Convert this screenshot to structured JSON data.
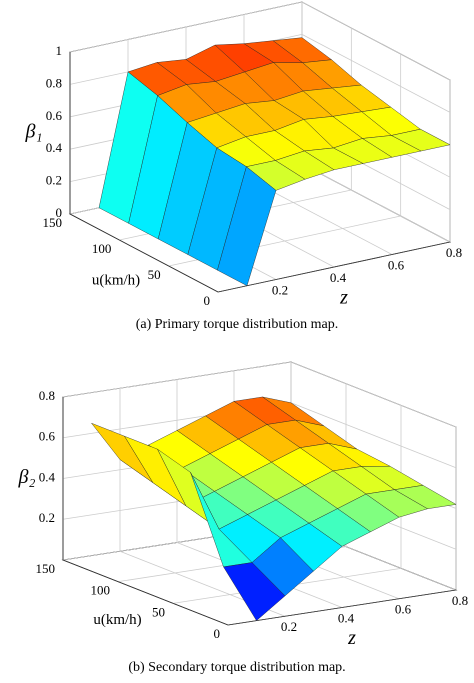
{
  "chart_data": [
    {
      "type": "surface",
      "colormap": "jet",
      "grid": true,
      "xlabel": "z",
      "ylabel": "u(km/h)",
      "zlabel": "β₁",
      "caption": "(a) Primary torque distribution map.",
      "x": [
        0.1,
        0.2,
        0.3,
        0.4,
        0.5,
        0.6,
        0.7,
        0.8
      ],
      "y": [
        0,
        30,
        60,
        90,
        120,
        150
      ],
      "values": [
        [
          0,
          0.55,
          0.58,
          0.6,
          0.6,
          0.6,
          0.6,
          0.6
        ],
        [
          0,
          0.6,
          0.6,
          0.62,
          0.6,
          0.62,
          0.6,
          0.6
        ],
        [
          0,
          0.62,
          0.65,
          0.65,
          0.68,
          0.66,
          0.65,
          0.64
        ],
        [
          0,
          0.68,
          0.7,
          0.72,
          0.7,
          0.72,
          0.7,
          0.68
        ],
        [
          0,
          0.75,
          0.78,
          0.76,
          0.78,
          0.8,
          0.76,
          0.74
        ],
        [
          0,
          0.8,
          0.82,
          0.8,
          0.85,
          0.82,
          0.8,
          0.78
        ]
      ],
      "xlim": [
        0,
        0.8
      ],
      "xticks": [
        0.2,
        0.4,
        0.6,
        0.8
      ],
      "ylim": [
        0,
        150
      ],
      "yticks": [
        0,
        50,
        100,
        150
      ],
      "zlim": [
        0,
        1
      ],
      "zticks": [
        0,
        0.2,
        0.4,
        0.6,
        0.8,
        1
      ]
    },
    {
      "type": "surface",
      "colormap": "jet",
      "grid": true,
      "xlabel": "z",
      "ylabel": "u(km/h)",
      "zlabel": "β₂",
      "caption": "(b) Secondary torque distribution map.",
      "x": [
        0.1,
        0.2,
        0.3,
        0.4,
        0.5,
        0.6,
        0.7,
        0.8
      ],
      "y": [
        0,
        30,
        60,
        90,
        120,
        150
      ],
      "values": [
        [
          0,
          0.1,
          0.2,
          0.3,
          0.35,
          0.4,
          0.42,
          0.42
        ],
        [
          0.2,
          0.2,
          0.3,
          0.35,
          0.4,
          0.45,
          0.45,
          0.45
        ],
        [
          0.6,
          0.3,
          0.35,
          0.4,
          0.45,
          0.5,
          0.5,
          0.48
        ],
        [
          0.65,
          0.35,
          0.4,
          0.45,
          0.5,
          0.55,
          0.55,
          0.5
        ],
        [
          0.65,
          0.4,
          0.45,
          0.5,
          0.55,
          0.6,
          0.6,
          0.55
        ],
        [
          0.65,
          0.45,
          0.5,
          0.55,
          0.6,
          0.65,
          0.65,
          0.6
        ]
      ],
      "xlim": [
        0,
        0.8
      ],
      "xticks": [
        0.2,
        0.4,
        0.6,
        0.8
      ],
      "ylim": [
        0,
        150
      ],
      "yticks": [
        0,
        50,
        100,
        150
      ],
      "zlim": [
        0,
        0.8
      ],
      "zticks": [
        0.2,
        0.4,
        0.6,
        0.8
      ]
    }
  ]
}
